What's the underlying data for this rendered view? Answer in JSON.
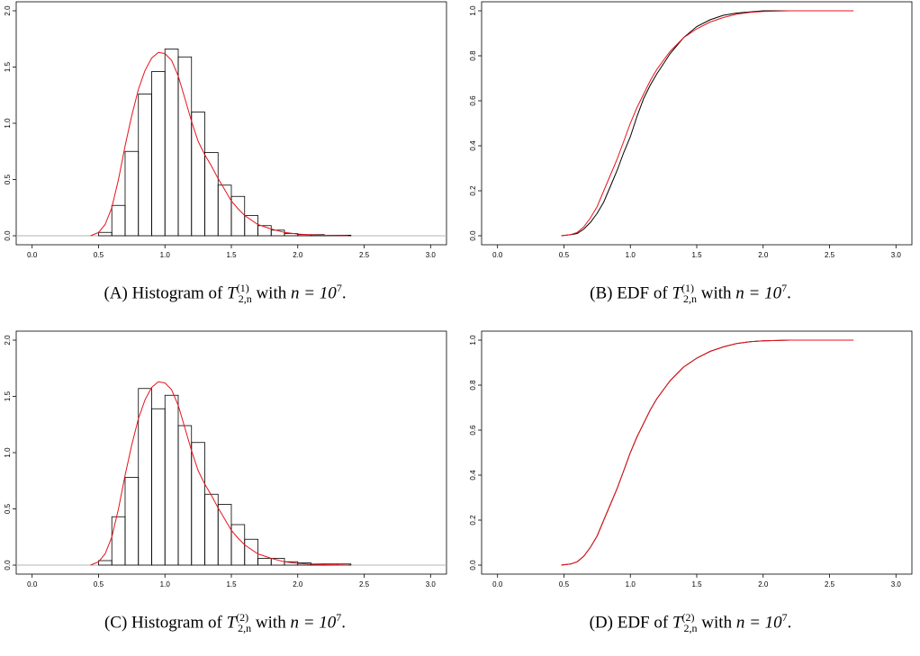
{
  "colors": {
    "axis": "#000000",
    "bars": "#000000",
    "density": "#e8121b",
    "edf": "#000000",
    "cdf": "#e8121b",
    "zero_line": "#b3b3b3"
  },
  "panels": [
    {
      "caption": {
        "tag": "(A)",
        "prefix": "Histogram of",
        "symbol": "T",
        "sup": "(1)",
        "sub": "2,n",
        "suffix_pre": "with",
        "n_label": "n = 10",
        "exp": "7",
        "end": "."
      },
      "chart_data": {
        "type": "bar",
        "subtype": "histogram with density curve",
        "xlim": [
          0,
          3
        ],
        "ylim": [
          0,
          2
        ],
        "x_ticks": [
          "0.0",
          "0.5",
          "1.0",
          "1.5",
          "2.0",
          "2.5",
          "3.0"
        ],
        "y_ticks": [
          "0.0",
          "0.5",
          "1.0",
          "1.5",
          "2.0"
        ],
        "bin_width": 0.1,
        "bin_starts": [
          0.5,
          0.6,
          0.7,
          0.8,
          0.9,
          1.0,
          1.1,
          1.2,
          1.3,
          1.4,
          1.5,
          1.6,
          1.7,
          1.8,
          1.9,
          2.0,
          2.1,
          2.2,
          2.3
        ],
        "values": [
          0.03,
          0.27,
          0.75,
          1.26,
          1.46,
          1.66,
          1.59,
          1.1,
          0.74,
          0.45,
          0.35,
          0.18,
          0.09,
          0.05,
          0.02,
          0.01,
          0.01,
          0.005,
          0.005
        ],
        "curve": {
          "x": [
            0.44,
            0.5,
            0.55,
            0.6,
            0.65,
            0.7,
            0.75,
            0.8,
            0.85,
            0.9,
            0.95,
            1.0,
            1.05,
            1.1,
            1.15,
            1.2,
            1.25,
            1.3,
            1.35,
            1.4,
            1.45,
            1.5,
            1.55,
            1.6,
            1.7,
            1.8,
            1.9,
            2.0,
            2.1,
            2.2,
            2.38
          ],
          "y": [
            0.0,
            0.03,
            0.1,
            0.25,
            0.5,
            0.8,
            1.07,
            1.3,
            1.47,
            1.58,
            1.63,
            1.62,
            1.56,
            1.42,
            1.22,
            1.02,
            0.84,
            0.72,
            0.62,
            0.51,
            0.41,
            0.31,
            0.24,
            0.18,
            0.1,
            0.06,
            0.03,
            0.015,
            0.008,
            0.004,
            0.0
          ]
        }
      }
    },
    {
      "caption": {
        "tag": "(B)",
        "prefix": "EDF of",
        "symbol": "T",
        "sup": "(1)",
        "sub": "2,n",
        "suffix_pre": "with",
        "n_label": "n = 10",
        "exp": "7",
        "end": "."
      },
      "chart_data": {
        "type": "line",
        "subtype": "empirical distribution function vs theoretical CDF",
        "xlim": [
          0,
          3
        ],
        "ylim": [
          0,
          1
        ],
        "x_ticks": [
          "0.0",
          "0.5",
          "1.0",
          "1.5",
          "2.0",
          "2.5",
          "3.0"
        ],
        "y_ticks": [
          "0.0",
          "0.2",
          "0.4",
          "0.6",
          "0.8",
          "1.0"
        ],
        "series": [
          {
            "color": "black",
            "x": [
              0.48,
              0.55,
              0.6,
              0.65,
              0.7,
              0.75,
              0.8,
              0.85,
              0.9,
              0.95,
              1.0,
              1.05,
              1.1,
              1.15,
              1.2,
              1.3,
              1.4,
              1.5,
              1.6,
              1.7,
              1.8,
              1.9,
              2.0,
              2.2,
              2.68
            ],
            "y": [
              0.0,
              0.005,
              0.01,
              0.03,
              0.06,
              0.1,
              0.15,
              0.22,
              0.29,
              0.37,
              0.44,
              0.53,
              0.61,
              0.67,
              0.72,
              0.81,
              0.88,
              0.93,
              0.96,
              0.98,
              0.99,
              0.995,
              1.0,
              1.0,
              1.0
            ]
          },
          {
            "color": "red",
            "x": [
              0.48,
              0.55,
              0.6,
              0.65,
              0.7,
              0.75,
              0.8,
              0.85,
              0.9,
              0.95,
              1.0,
              1.05,
              1.1,
              1.15,
              1.2,
              1.3,
              1.4,
              1.5,
              1.6,
              1.7,
              1.8,
              1.9,
              2.0,
              2.2,
              2.68
            ],
            "y": [
              0.0,
              0.005,
              0.015,
              0.04,
              0.08,
              0.13,
              0.2,
              0.27,
              0.34,
              0.42,
              0.5,
              0.57,
              0.63,
              0.69,
              0.74,
              0.82,
              0.88,
              0.92,
              0.95,
              0.97,
              0.985,
              0.993,
              0.997,
              1.0,
              1.0
            ]
          }
        ]
      }
    },
    {
      "caption": {
        "tag": "(C)",
        "prefix": "Histogram of",
        "symbol": "T",
        "sup": "(2)",
        "sub": "2,n",
        "suffix_pre": "with",
        "n_label": "n = 10",
        "exp": "7",
        "end": "."
      },
      "chart_data": {
        "type": "bar",
        "subtype": "histogram with density curve",
        "xlim": [
          0,
          3
        ],
        "ylim": [
          0,
          2
        ],
        "x_ticks": [
          "0.0",
          "0.5",
          "1.0",
          "1.5",
          "2.0",
          "2.5",
          "3.0"
        ],
        "y_ticks": [
          "0.0",
          "0.5",
          "1.0",
          "1.5",
          "2.0"
        ],
        "bin_width": 0.1,
        "bin_starts": [
          0.5,
          0.6,
          0.7,
          0.8,
          0.9,
          1.0,
          1.1,
          1.2,
          1.3,
          1.4,
          1.5,
          1.6,
          1.7,
          1.8,
          1.9,
          2.0,
          2.1,
          2.2,
          2.3
        ],
        "values": [
          0.04,
          0.43,
          0.78,
          1.57,
          1.39,
          1.51,
          1.24,
          1.09,
          0.63,
          0.54,
          0.36,
          0.23,
          0.06,
          0.06,
          0.03,
          0.02,
          0.01,
          0.01,
          0.01
        ],
        "curve": {
          "x": [
            0.44,
            0.5,
            0.55,
            0.6,
            0.65,
            0.7,
            0.75,
            0.8,
            0.85,
            0.9,
            0.95,
            1.0,
            1.05,
            1.1,
            1.15,
            1.2,
            1.25,
            1.3,
            1.35,
            1.4,
            1.45,
            1.5,
            1.55,
            1.6,
            1.7,
            1.8,
            1.9,
            2.0,
            2.1,
            2.2,
            2.38
          ],
          "y": [
            0.0,
            0.03,
            0.1,
            0.25,
            0.5,
            0.8,
            1.07,
            1.3,
            1.47,
            1.58,
            1.63,
            1.62,
            1.56,
            1.42,
            1.22,
            1.02,
            0.84,
            0.72,
            0.62,
            0.51,
            0.41,
            0.31,
            0.24,
            0.18,
            0.1,
            0.06,
            0.03,
            0.015,
            0.008,
            0.004,
            0.0
          ]
        }
      }
    },
    {
      "caption": {
        "tag": "(D)",
        "prefix": "EDF of",
        "symbol": "T",
        "sup": "(2)",
        "sub": "2,n",
        "suffix_pre": "with",
        "n_label": "n = 10",
        "exp": "7",
        "end": "."
      },
      "chart_data": {
        "type": "line",
        "subtype": "empirical distribution function vs theoretical CDF",
        "xlim": [
          0,
          3
        ],
        "ylim": [
          0,
          1
        ],
        "x_ticks": [
          "0.0",
          "0.5",
          "1.0",
          "1.5",
          "2.0",
          "2.5",
          "3.0"
        ],
        "y_ticks": [
          "0.0",
          "0.2",
          "0.4",
          "0.6",
          "0.8",
          "1.0"
        ],
        "series": [
          {
            "color": "black",
            "x": [
              0.48,
              0.55,
              0.6,
              0.65,
              0.7,
              0.75,
              0.8,
              0.85,
              0.9,
              0.95,
              1.0,
              1.05,
              1.1,
              1.15,
              1.2,
              1.3,
              1.4,
              1.5,
              1.6,
              1.7,
              1.8,
              1.9,
              2.0,
              2.2,
              2.68
            ],
            "y": [
              0.0,
              0.005,
              0.015,
              0.04,
              0.08,
              0.13,
              0.2,
              0.27,
              0.34,
              0.42,
              0.5,
              0.57,
              0.63,
              0.69,
              0.74,
              0.82,
              0.88,
              0.92,
              0.95,
              0.97,
              0.985,
              0.993,
              0.997,
              1.0,
              1.0
            ]
          },
          {
            "color": "red",
            "x": [
              0.48,
              0.55,
              0.6,
              0.65,
              0.7,
              0.75,
              0.8,
              0.85,
              0.9,
              0.95,
              1.0,
              1.05,
              1.1,
              1.15,
              1.2,
              1.3,
              1.4,
              1.5,
              1.6,
              1.7,
              1.8,
              1.9,
              2.0,
              2.2,
              2.68
            ],
            "y": [
              0.0,
              0.005,
              0.015,
              0.04,
              0.08,
              0.13,
              0.2,
              0.27,
              0.34,
              0.42,
              0.5,
              0.57,
              0.63,
              0.69,
              0.74,
              0.82,
              0.88,
              0.92,
              0.95,
              0.97,
              0.985,
              0.993,
              0.997,
              1.0,
              1.0
            ]
          }
        ]
      }
    }
  ]
}
